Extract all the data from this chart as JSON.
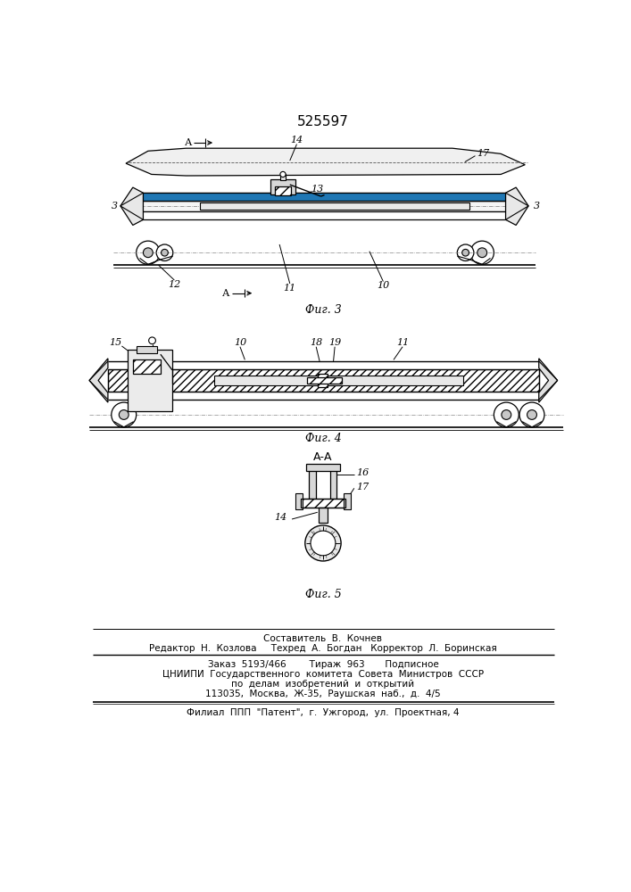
{
  "patent_number": "525597",
  "bg_color": "#ffffff",
  "line_color": "#000000",
  "fig3_caption": "Фиг. 3",
  "fig4_caption": "Фиг. 4",
  "fig5_caption": "Фиг. 5",
  "section_label": "А-А",
  "footer_lines": [
    "Составитель  В.  Кочнев",
    "Редактор  Н.  Козлова     Техред  А.  Богдан   Корректор  Л.  Боринская",
    "Заказ  5193/466        Тираж  963       Подписное",
    "ЦНИИПИ  Государственного  комитета  Совета  Министров  СССР",
    "по  делам  изобретений  и  открытий",
    "113035,  Москва,  Ж-35,  Раушская  наб.,  д.  4/5",
    "Филиал  ППП  \"Патент\",  г.  Ужгород,  ул.  Проектная, 4"
  ]
}
